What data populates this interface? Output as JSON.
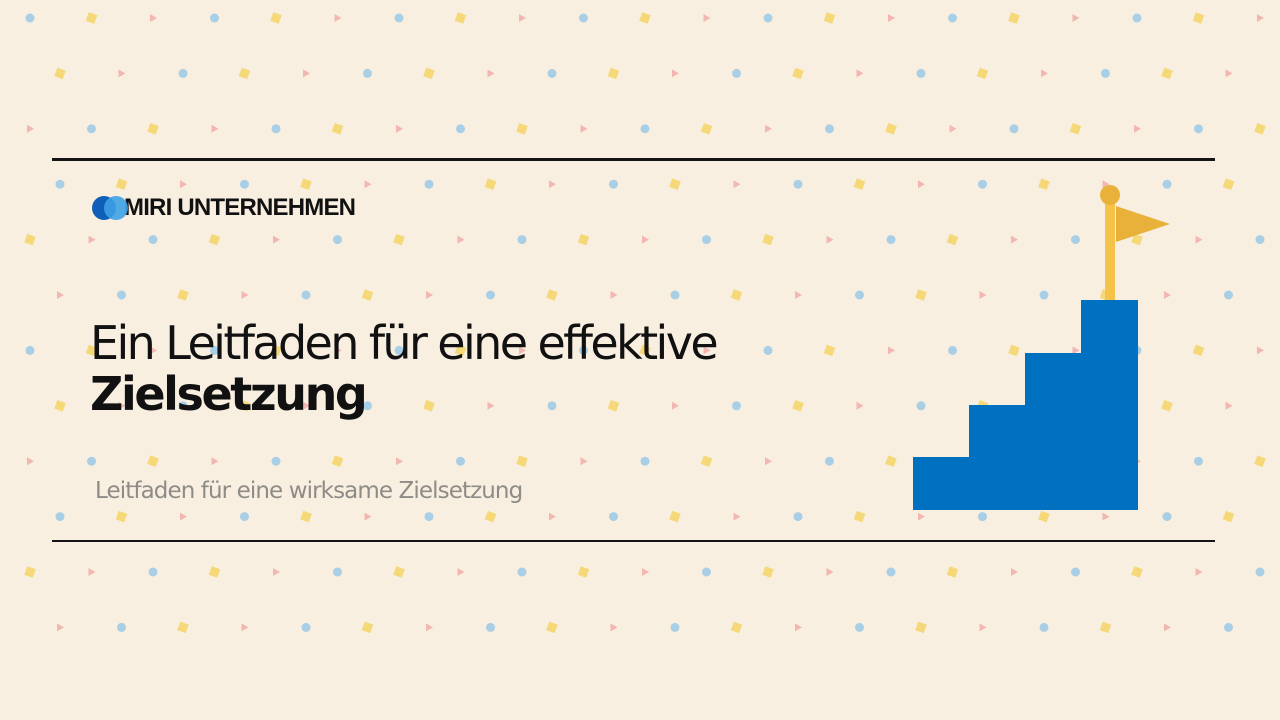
{
  "brand": {
    "name": "MIRI UNTERNEHMEN"
  },
  "title": {
    "line1": "Ein Leitfaden für eine effektive",
    "line2": "Zielsetzung"
  },
  "subtitle": "Leitfaden für eine wirksame Zielsetzung",
  "colors": {
    "background": "#f8efe1",
    "stairs": "#0070c0",
    "flag": "#e8b23a",
    "pole": "#f6c34a",
    "dot_blue": "#a9cfe6",
    "dot_yellow": "#f5d878",
    "dot_pink": "#f2b7b0"
  },
  "icons": [
    "logo-icon",
    "stairs-goal-icon",
    "flag-icon"
  ]
}
